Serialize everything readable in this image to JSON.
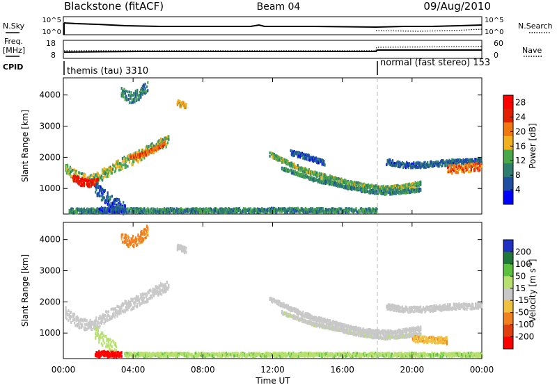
{
  "header": {
    "station": "Blackstone (fitACF)",
    "beam": "Beam 04",
    "date": "09/Aug/2010"
  },
  "top_panel": {
    "nsky_label": "N.Sky",
    "nsearch_label": "N.Search",
    "y_ticks_left": [
      "10^5",
      "10^0"
    ],
    "y_ticks_right": [
      "10^5",
      "10^0"
    ]
  },
  "freq_panel": {
    "freq_label": "Freq.",
    "freq_unit": "[MHz]",
    "nave_label": "Nave",
    "y_ticks_left": [
      "18",
      "8"
    ],
    "y_ticks_right": [
      "60",
      "0"
    ]
  },
  "cpid_panel": {
    "label": "CPID",
    "modes": [
      {
        "name": "themis (tau) 3310",
        "start_hour": 0,
        "end_hour": 18
      },
      {
        "name": "normal (fast stereo) 153",
        "start_hour": 18,
        "end_hour": 24
      }
    ]
  },
  "colors": {
    "power": [
      "#0000ff",
      "#1e4fa0",
      "#2e7d6e",
      "#4aa84a",
      "#f0b020",
      "#f07810",
      "#e02000",
      "#ff0000"
    ],
    "velocity": [
      "#2030c0",
      "#207838",
      "#5cc040",
      "#b8e070",
      "#c8c8c8",
      "#f0c040",
      "#f08020",
      "#e04010",
      "#ff0000"
    ]
  },
  "chart_data": [
    {
      "type": "heatmap",
      "title": "Power",
      "ylabel": "Slant Range [km]",
      "xlabel": "",
      "colorbar_label": "Power [dB]",
      "colorbar_ticks": [
        "4",
        "8",
        "12",
        "16",
        "20",
        "24",
        "28"
      ],
      "colorbar_range": [
        0,
        30
      ],
      "xlim_hours": [
        0,
        24
      ],
      "ylim": [
        180,
        4550
      ],
      "y_ticks": [
        "1000",
        "2000",
        "3000",
        "4000"
      ],
      "mode_change_hour": 18,
      "bands": [
        {
          "points": [
            [
              0.1,
              1650
            ],
            [
              0.5,
              1450
            ],
            [
              1.0,
              1300
            ],
            [
              1.5,
              1250
            ],
            [
              2.0,
              1350
            ],
            [
              2.5,
              1550
            ],
            [
              3.0,
              1700
            ],
            [
              3.5,
              1850
            ],
            [
              4.0,
              1950
            ],
            [
              4.5,
              2100
            ],
            [
              5.0,
              2250
            ],
            [
              5.5,
              2400
            ],
            [
              6.0,
              2500
            ]
          ],
          "spread": 180,
          "power": 14
        },
        {
          "points": [
            [
              0.5,
              1350
            ],
            [
              1.0,
              1200
            ],
            [
              1.5,
              1150
            ],
            [
              2.0,
              1250
            ]
          ],
          "spread": 120,
          "power": 26
        },
        {
          "points": [
            [
              3.8,
              2000
            ],
            [
              4.3,
              2050
            ],
            [
              5.0,
              2200
            ],
            [
              5.8,
              2450
            ]
          ],
          "spread": 70,
          "power": 22
        },
        {
          "points": [
            [
              1.8,
              1000
            ],
            [
              2.2,
              800
            ],
            [
              2.6,
              650
            ],
            [
              3.0,
              500
            ],
            [
              3.5,
              350
            ]
          ],
          "spread": 200,
          "power": 5
        },
        {
          "points": [
            [
              3.3,
              4100
            ],
            [
              3.8,
              3900
            ],
            [
              4.3,
              4000
            ],
            [
              4.8,
              4300
            ]
          ],
          "spread": 180,
          "power": 9
        },
        {
          "points": [
            [
              6.5,
              3750
            ],
            [
              7.0,
              3650
            ]
          ],
          "spread": 100,
          "power": 18
        },
        {
          "points": [
            [
              11.8,
              2100
            ],
            [
              12.5,
              1900
            ],
            [
              13.5,
              1650
            ],
            [
              14.5,
              1450
            ],
            [
              15.5,
              1300
            ],
            [
              16.5,
              1150
            ],
            [
              17.5,
              1050
            ],
            [
              18.5,
              1000
            ],
            [
              19.5,
              1050
            ],
            [
              20.5,
              1150
            ]
          ],
          "spread": 70,
          "power": 13
        },
        {
          "points": [
            [
              12.5,
              1650
            ],
            [
              13.5,
              1450
            ],
            [
              14.5,
              1250
            ],
            [
              15.5,
              1150
            ],
            [
              16.5,
              1000
            ],
            [
              17.5,
              900
            ],
            [
              18.5,
              850
            ],
            [
              19.5,
              900
            ],
            [
              20.5,
              950
            ]
          ],
          "spread": 50,
          "power": 10
        },
        {
          "points": [
            [
              13.0,
              2150
            ],
            [
              14.0,
              2000
            ],
            [
              15.0,
              1800
            ]
          ],
          "spread": 80,
          "power": 6
        },
        {
          "points": [
            [
              18.5,
              1850
            ],
            [
              19.5,
              1750
            ],
            [
              20.5,
              1750
            ],
            [
              21.5,
              1800
            ],
            [
              22.5,
              1850
            ],
            [
              23.5,
              1850
            ],
            [
              24.0,
              1900
            ]
          ],
          "spread": 90,
          "power": 7
        },
        {
          "points": [
            [
              22.0,
              1600
            ],
            [
              23.0,
              1650
            ],
            [
              24.0,
              1700
            ]
          ],
          "spread": 130,
          "power": 21
        },
        {
          "points": [
            [
              0.3,
              280
            ],
            [
              3.0,
              290
            ],
            [
              6.0,
              290
            ],
            [
              9.0,
              290
            ],
            [
              12.0,
              300
            ],
            [
              15.0,
              290
            ],
            [
              18.0,
              290
            ]
          ],
          "spread": 70,
          "power": 10
        },
        {
          "points": [
            [
              2.0,
              300
            ],
            [
              3.5,
              320
            ]
          ],
          "spread": 90,
          "power": 6
        }
      ]
    },
    {
      "type": "heatmap",
      "title": "Velocity",
      "ylabel": "Slant Range [km]",
      "xlabel": "Time UT",
      "colorbar_label": "Velocity [m s^-1]",
      "colorbar_ticks": [
        "200",
        "100",
        "50",
        "15",
        "-15",
        "-50",
        "-100",
        "-200"
      ],
      "colorbar_range": [
        -250,
        250
      ],
      "xlim_hours": [
        0,
        24
      ],
      "x_ticks": [
        "00:00",
        "04:00",
        "08:00",
        "12:00",
        "16:00",
        "20:00",
        "00:00"
      ],
      "ylim": [
        180,
        4550
      ],
      "y_ticks": [
        "1000",
        "2000",
        "3000",
        "4000"
      ],
      "mode_change_hour": 18,
      "bands": [
        {
          "points": [
            [
              0.1,
              1650
            ],
            [
              0.5,
              1450
            ],
            [
              1.0,
              1300
            ],
            [
              1.5,
              1250
            ],
            [
              2.0,
              1350
            ],
            [
              2.5,
              1550
            ],
            [
              3.0,
              1700
            ],
            [
              3.5,
              1850
            ],
            [
              4.0,
              1950
            ],
            [
              4.5,
              2100
            ],
            [
              5.0,
              2250
            ],
            [
              5.5,
              2400
            ],
            [
              6.0,
              2500
            ]
          ],
          "spread": 180,
          "velocity": 0
        },
        {
          "points": [
            [
              1.8,
              1000
            ],
            [
              2.2,
              800
            ],
            [
              2.6,
              650
            ],
            [
              3.0,
              500
            ]
          ],
          "spread": 200,
          "velocity": 30
        },
        {
          "points": [
            [
              1.8,
              330
            ],
            [
              2.5,
              320
            ],
            [
              3.3,
              320
            ]
          ],
          "spread": 90,
          "velocity": -230
        },
        {
          "points": [
            [
              3.3,
              4100
            ],
            [
              3.8,
              3900
            ],
            [
              4.3,
              4000
            ],
            [
              4.8,
              4300
            ]
          ],
          "spread": 180,
          "velocity": -60
        },
        {
          "points": [
            [
              6.5,
              3750
            ],
            [
              7.0,
              3650
            ]
          ],
          "spread": 100,
          "velocity": 0
        },
        {
          "points": [
            [
              11.8,
              2100
            ],
            [
              12.5,
              1900
            ],
            [
              13.5,
              1650
            ],
            [
              14.5,
              1450
            ],
            [
              15.5,
              1300
            ],
            [
              16.5,
              1150
            ],
            [
              17.5,
              1050
            ],
            [
              18.5,
              1000
            ],
            [
              19.5,
              1050
            ],
            [
              20.5,
              1150
            ]
          ],
          "spread": 70,
          "velocity": 0
        },
        {
          "points": [
            [
              12.5,
              1650
            ],
            [
              13.5,
              1450
            ],
            [
              14.5,
              1250
            ],
            [
              15.5,
              1150
            ],
            [
              16.5,
              1000
            ],
            [
              17.5,
              900
            ],
            [
              18.5,
              850
            ],
            [
              19.5,
              900
            ],
            [
              20.5,
              950
            ]
          ],
          "spread": 50,
          "velocity": 5
        },
        {
          "points": [
            [
              18.5,
              1850
            ],
            [
              19.5,
              1750
            ],
            [
              20.5,
              1750
            ],
            [
              21.5,
              1800
            ],
            [
              22.5,
              1850
            ],
            [
              23.5,
              1850
            ],
            [
              24.0,
              1900
            ]
          ],
          "spread": 90,
          "velocity": 0
        },
        {
          "points": [
            [
              3.5,
              300
            ],
            [
              6.0,
              300
            ],
            [
              9.0,
              300
            ],
            [
              12.0,
              300
            ],
            [
              15.0,
              300
            ],
            [
              18.0,
              300
            ],
            [
              21.0,
              300
            ],
            [
              24.0,
              300
            ]
          ],
          "spread": 60,
          "velocity": 40
        },
        {
          "points": [
            [
              20.0,
              800
            ],
            [
              22.0,
              750
            ]
          ],
          "spread": 100,
          "velocity": -40
        }
      ]
    }
  ]
}
